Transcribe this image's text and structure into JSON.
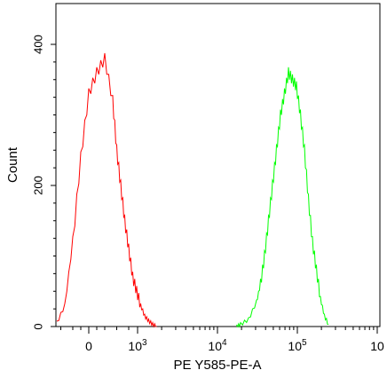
{
  "chart_data": {
    "type": "line",
    "title": "",
    "xlabel": "PE Y585-PE-A",
    "ylabel": "Count",
    "x_scale": "biexponential",
    "ylim": [
      0,
      400
    ],
    "yticks": [
      0,
      200,
      400
    ],
    "y_tick_labels": [
      "0",
      "200",
      "400"
    ],
    "x_tick_labels": [
      {
        "label": "0",
        "base": "0",
        "exp": ""
      },
      {
        "label": "10^3",
        "base": "10",
        "exp": "3"
      },
      {
        "label": "10^4",
        "base": "10",
        "exp": "4"
      },
      {
        "label": "10^5",
        "base": "10",
        "exp": "5"
      },
      {
        "label": "10",
        "base": "10",
        "exp": ""
      }
    ],
    "grid": false,
    "legend": "none",
    "series": [
      {
        "color": "#ff0000",
        "x": [
          -0.4,
          -0.3,
          -0.2,
          -0.1,
          0.0,
          0.1,
          0.2,
          0.3,
          0.35,
          0.4,
          0.45,
          0.5,
          0.55,
          0.6,
          0.65,
          0.7,
          0.75,
          0.8,
          0.85
        ],
        "y": [
          5,
          30,
          120,
          240,
          330,
          360,
          380,
          320,
          250,
          200,
          150,
          110,
          70,
          50,
          30,
          15,
          8,
          3,
          0
        ]
      },
      {
        "color": "#00ff00",
        "x": [
          1.85,
          1.9,
          2.0,
          2.1,
          2.15,
          2.2,
          2.25,
          2.3,
          2.35,
          2.4,
          2.45,
          2.5,
          2.55,
          2.6,
          2.65,
          2.7,
          2.75,
          2.8,
          2.85,
          2.9,
          2.95,
          3.0
        ],
        "y": [
          0,
          3,
          10,
          35,
          60,
          100,
          150,
          200,
          250,
          300,
          330,
          360,
          350,
          340,
          300,
          250,
          180,
          120,
          80,
          40,
          15,
          3
        ]
      }
    ]
  }
}
